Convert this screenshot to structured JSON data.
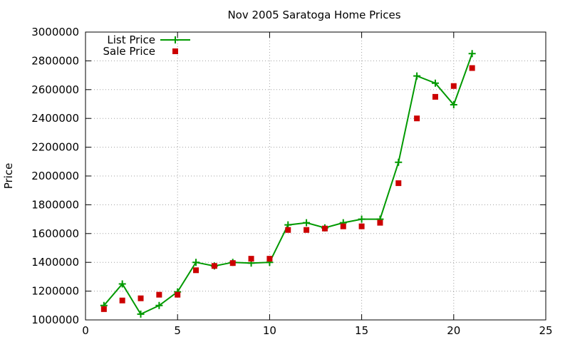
{
  "chart_data": {
    "type": "line",
    "title": "Nov 2005 Saratoga Home Prices",
    "xlabel": "",
    "ylabel": "Price",
    "xlim": [
      0,
      25
    ],
    "ylim": [
      1000000,
      3000000
    ],
    "xticks": [
      "0",
      "5",
      "10",
      "15",
      "20",
      "25"
    ],
    "xtick_values": [
      0,
      5,
      10,
      15,
      20,
      25
    ],
    "yticks": [
      "1000000",
      "1200000",
      "1400000",
      "1600000",
      "1800000",
      "2000000",
      "2200000",
      "2400000",
      "2600000",
      "2800000",
      "3000000"
    ],
    "ytick_values": [
      1000000,
      1200000,
      1400000,
      1600000,
      1800000,
      2000000,
      2200000,
      2400000,
      2600000,
      2800000,
      3000000
    ],
    "grid": true,
    "legend_position": "top-left",
    "series": [
      {
        "name": "List Price",
        "style": "linespoints",
        "marker": "plus",
        "color": "#009900",
        "x": [
          1,
          2,
          3,
          4,
          5,
          6,
          7,
          8,
          9,
          10,
          11,
          12,
          13,
          14,
          15,
          16,
          17,
          18,
          19,
          20,
          21
        ],
        "values": [
          1100000,
          1250000,
          1040000,
          1100000,
          1195000,
          1400000,
          1375000,
          1400000,
          1395000,
          1400000,
          1660000,
          1675000,
          1640000,
          1675000,
          1700000,
          1700000,
          2095000,
          2695000,
          2645000,
          2495000,
          2850000
        ]
      },
      {
        "name": "Sale Price",
        "style": "points",
        "marker": "square",
        "color": "#cc0000",
        "x": [
          1,
          2,
          3,
          4,
          5,
          6,
          7,
          8,
          9,
          10,
          11,
          12,
          13,
          14,
          15,
          16,
          17,
          18,
          19,
          20,
          21
        ],
        "values": [
          1075000,
          1135000,
          1150000,
          1175000,
          1175000,
          1345000,
          1375000,
          1395000,
          1425000,
          1425000,
          1625000,
          1625000,
          1635000,
          1650000,
          1650000,
          1675000,
          1950000,
          2400000,
          2550000,
          2625000,
          2750000
        ]
      }
    ]
  }
}
